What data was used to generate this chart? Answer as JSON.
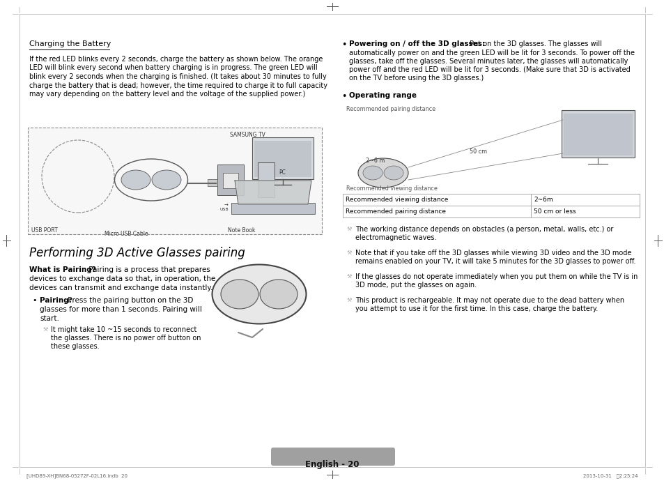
{
  "bg_color": "#ffffff",
  "page_width": 9.54,
  "page_height": 6.9,
  "s1_title": "Charging the Battery",
  "s1_body_lines": [
    "If the red LED blinks every 2 seconds, charge the battery as shown below. The orange",
    "LED will blink every second when battery charging is in progress. The green LED will",
    "blink every 2 seconds when the charging is finished. (It takes about 30 minutes to fully",
    "charge the battery that is dead; however, the time required to charge it to full capacity",
    "may vary depending on the battery level and the voltage of the supplied power.)"
  ],
  "s2_title": "Performing 3D Active Glasses pairing",
  "wip_line1": "What is Pairing? Pairing is a process that prepares",
  "wip_line2": "devices to exchange data so that, in operation, the",
  "wip_line3": "devices can transmit and exchange data instantly.",
  "bp_line1": "Pairing: Press the pairing button on the 3D",
  "bp_line2": "glasses for more than 1 seconds. Pairing will",
  "bp_line3": "start.",
  "note_line1": "It might take 10 ~15 seconds to reconnect",
  "note_line2": "the glasses. There is no power off button on",
  "note_line3": "these glasses.",
  "r_pow_bold": "Powering on / off the 3D glasses:",
  "r_pow_lines": [
    "Put on the 3D glasses. The glasses will",
    "automatically power on and the green LED will be lit for 3 seconds. To power off the",
    "glasses, take off the glasses. Several minutes later, the glasses will automatically",
    "power off and the red LED will be lit for 3 seconds. (Make sure that 3D is activated",
    "on the TV before using the 3D glasses.)"
  ],
  "r_op_bold": "Operating range",
  "diag_pair_lbl": "Recommended pairing distance",
  "diag_dist": "2~6 m",
  "diag_50cm": "50 cm",
  "diag_view_lbl": "Recommended viewing distance",
  "tbl_c1r1": "Recommended viewing distance",
  "tbl_c2r1": "2~6m",
  "tbl_c1r2": "Recommended pairing distance",
  "tbl_c2r2": "50 cm or less",
  "note1_lines": [
    "The working distance depends on obstacles (a person, metal, walls, etc.) or",
    "electromagnetic waves."
  ],
  "note2_lines": [
    "Note that if you take off the 3D glasses while viewing 3D video and the 3D mode",
    "remains enabled on your TV, it will take 5 minutes for the 3D glasses to power off."
  ],
  "note3_lines": [
    "If the glasses do not operate immediately when you put them on while the TV is in",
    "3D mode, put the glasses on again."
  ],
  "note4_lines": [
    "This product is rechargeable. It may not operate due to the dead battery when",
    "you attempt to use it for the first time. In this case, charge the battery."
  ],
  "usb_port": "USB PORT",
  "micro_usb": "Micro USB Cable",
  "samsung_tv": "SAMSUNG TV",
  "pc_lbl": "PC",
  "note_book": "Note Book",
  "footer_text": "English - 20",
  "footer_left": "[UHD89-XH]BN68-05272F-02L16.indb  20",
  "footer_right": "2013-10-31   \u00042:25:24"
}
